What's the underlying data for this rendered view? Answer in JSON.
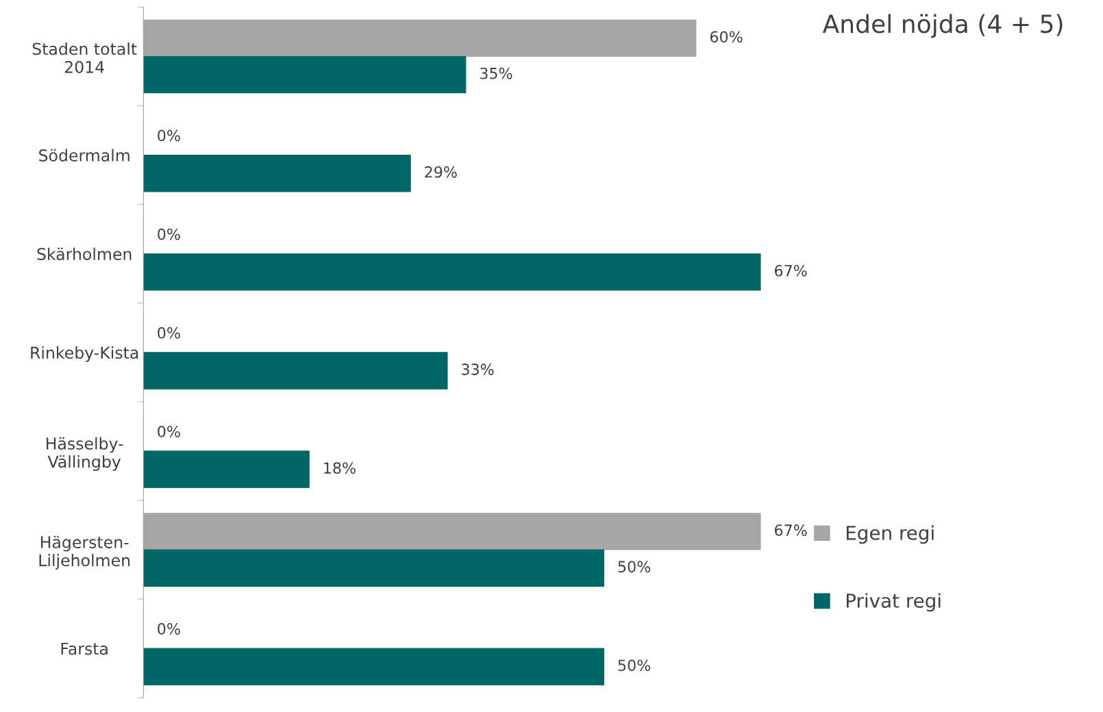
{
  "chart_data": {
    "type": "bar",
    "orientation": "horizontal",
    "title": "Andel nöjda (4 + 5)",
    "categories": [
      "Staden totalt\n2014",
      "Södermalm",
      "Skärholmen",
      "Rinkeby-Kista",
      "Hässelby-\nVällingby",
      "Hägersten-\nLiljeholmen",
      "Farsta"
    ],
    "series": [
      {
        "name": "Egen regi",
        "color": "#a6a6a6",
        "values": [
          60,
          0,
          0,
          0,
          0,
          67,
          0
        ],
        "value_labels": [
          "60%",
          "0%",
          "0%",
          "0%",
          "0%",
          "67%",
          "0%"
        ]
      },
      {
        "name": "Privat regi",
        "color": "#006666",
        "values": [
          35,
          29,
          67,
          33,
          18,
          50,
          50
        ],
        "value_labels": [
          "35%",
          "29%",
          "67%",
          "33%",
          "18%",
          "50%",
          "50%"
        ]
      }
    ],
    "legend": "right",
    "grid": false
  }
}
